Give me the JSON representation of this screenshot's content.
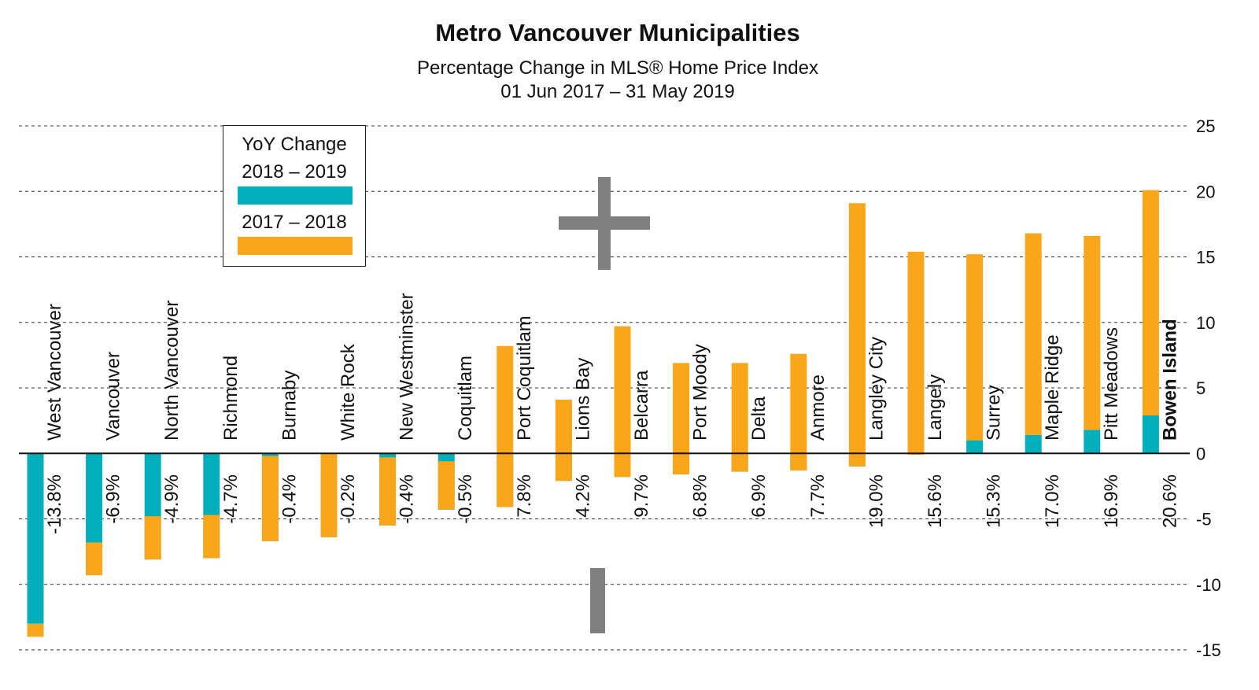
{
  "title": "Metro Vancouver Municipalities",
  "subtitle_line1": "Percentage Change in MLS® Home Price Index",
  "subtitle_line2": "01 Jun 2017 – 31 May 2019",
  "legend": {
    "title": "YoY Change",
    "entry1": "2018 – 2019",
    "entry2": "2017 – 2018"
  },
  "colors": {
    "teal": "#00aebc",
    "orange": "#faa61a",
    "grid": "#333333",
    "annotation": "#808080"
  },
  "annotations": {
    "plus_icon": "plus-icon",
    "minus_icon": "minus-icon"
  },
  "chart_data": {
    "type": "bar",
    "title": "Metro Vancouver Municipalities",
    "subtitle": "Percentage Change in MLS® Home Price Index 01 Jun 2017 – 31 May 2019",
    "ylim": [
      -15,
      25
    ],
    "yticks": [
      25,
      20,
      15,
      10,
      5,
      0,
      -5,
      -10,
      -15
    ],
    "grid": true,
    "legend_position": "top-left",
    "categories": [
      "West Vancouver",
      "Vancouver",
      "North Vancouver",
      "Richmond",
      "Burnaby",
      "White Rock",
      "New Westminster",
      "Coquitlam",
      "Port Coquitlam",
      "Lions Bay",
      "Belcarra",
      "Port Moody",
      "Delta",
      "Anmore",
      "Langley City",
      "Langely",
      "Surrey",
      "Maple Ridge",
      "Pitt Meadows",
      "Bowen Island"
    ],
    "bold_categories": [
      "Bowen Island"
    ],
    "total_labels": [
      "-13.8%",
      "-6.9%",
      "-4.9%",
      "-4.7%",
      "-0.4%",
      "-0.2%",
      "-0.4%",
      "-0.5%",
      "7.8%",
      "4.2%",
      "9.7%",
      "6.8%",
      "6.9%",
      "7.7%",
      "19.0%",
      "15.6%",
      "15.3%",
      "17.0%",
      "16.9%",
      "20.6%"
    ],
    "series": [
      {
        "name": "2018 – 2019",
        "color": "#00aebc",
        "values": [
          -13.0,
          -9.3,
          -8.1,
          -8.0,
          -6.7,
          -6.4,
          -5.5,
          -4.3,
          -4.1,
          -2.1,
          -1.8,
          -1.6,
          -1.4,
          -1.3,
          -1.0,
          -0.1,
          1.0,
          1.4,
          1.8,
          2.9
        ]
      },
      {
        "name": "2017 – 2018",
        "color": "#faa61a",
        "values": [
          -1.0,
          2.5,
          3.3,
          3.3,
          6.5,
          6.4,
          5.2,
          3.7,
          12.3,
          6.2,
          11.5,
          8.5,
          8.3,
          8.9,
          20.1,
          15.5,
          14.2,
          15.4,
          14.8,
          17.2
        ]
      }
    ]
  }
}
